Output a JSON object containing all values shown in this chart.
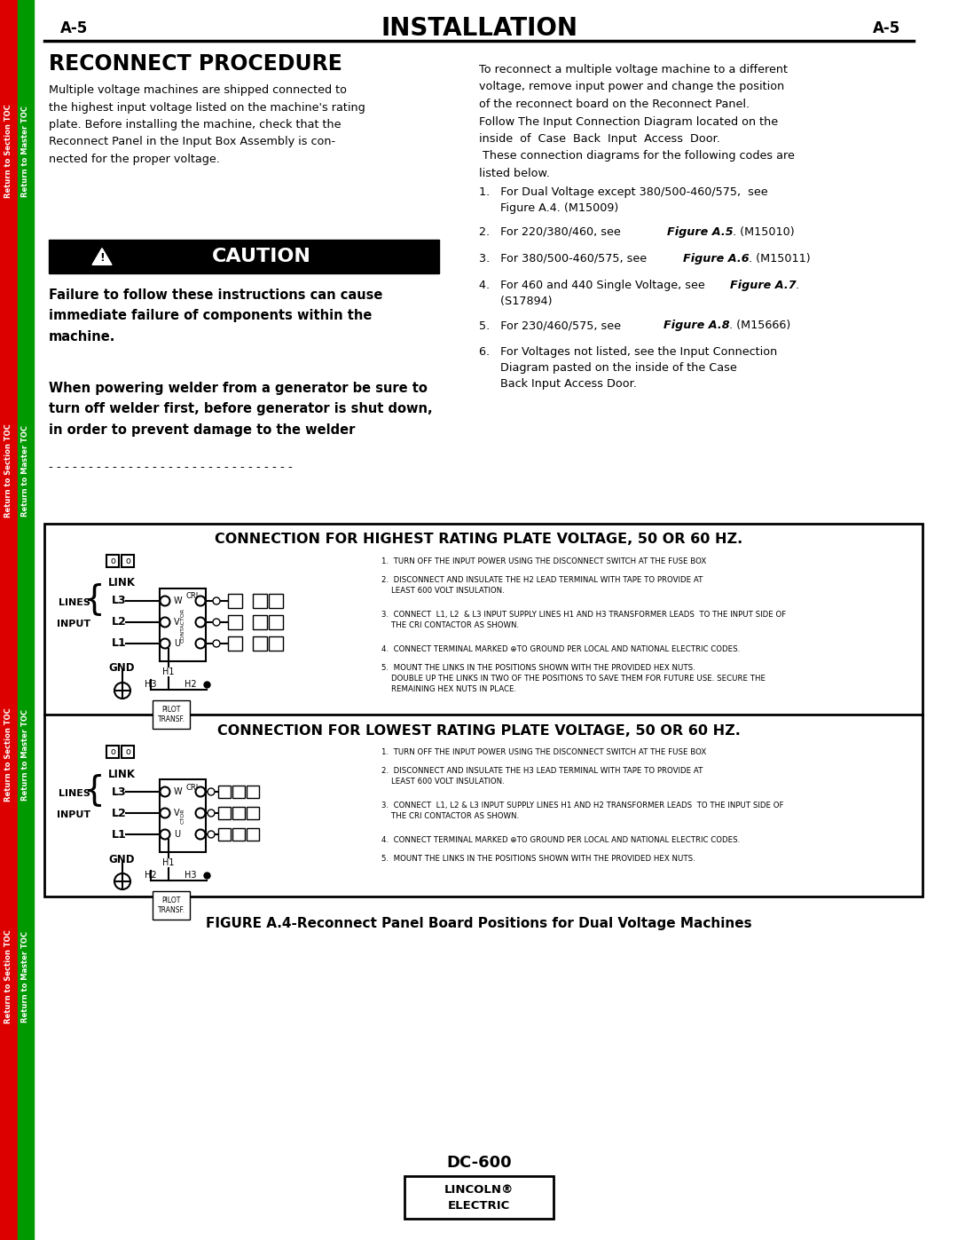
{
  "page_bg": "#ffffff",
  "header_left": "A-5",
  "header_center": "INSTALLATION",
  "header_right": "A-5",
  "title_reconnect": "RECONNECT PROCEDURE",
  "conn_high_title": "CONNECTION FOR HIGHEST RATING PLATE VOLTAGE, 50 OR 60 HZ.",
  "conn_low_title": "CONNECTION FOR LOWEST RATING PLATE VOLTAGE, 50 OR 60 HZ.",
  "figure_caption": "FIGURE A.4-Reconnect Panel Board Positions for Dual Voltage Machines",
  "dc600_text": "DC-600"
}
